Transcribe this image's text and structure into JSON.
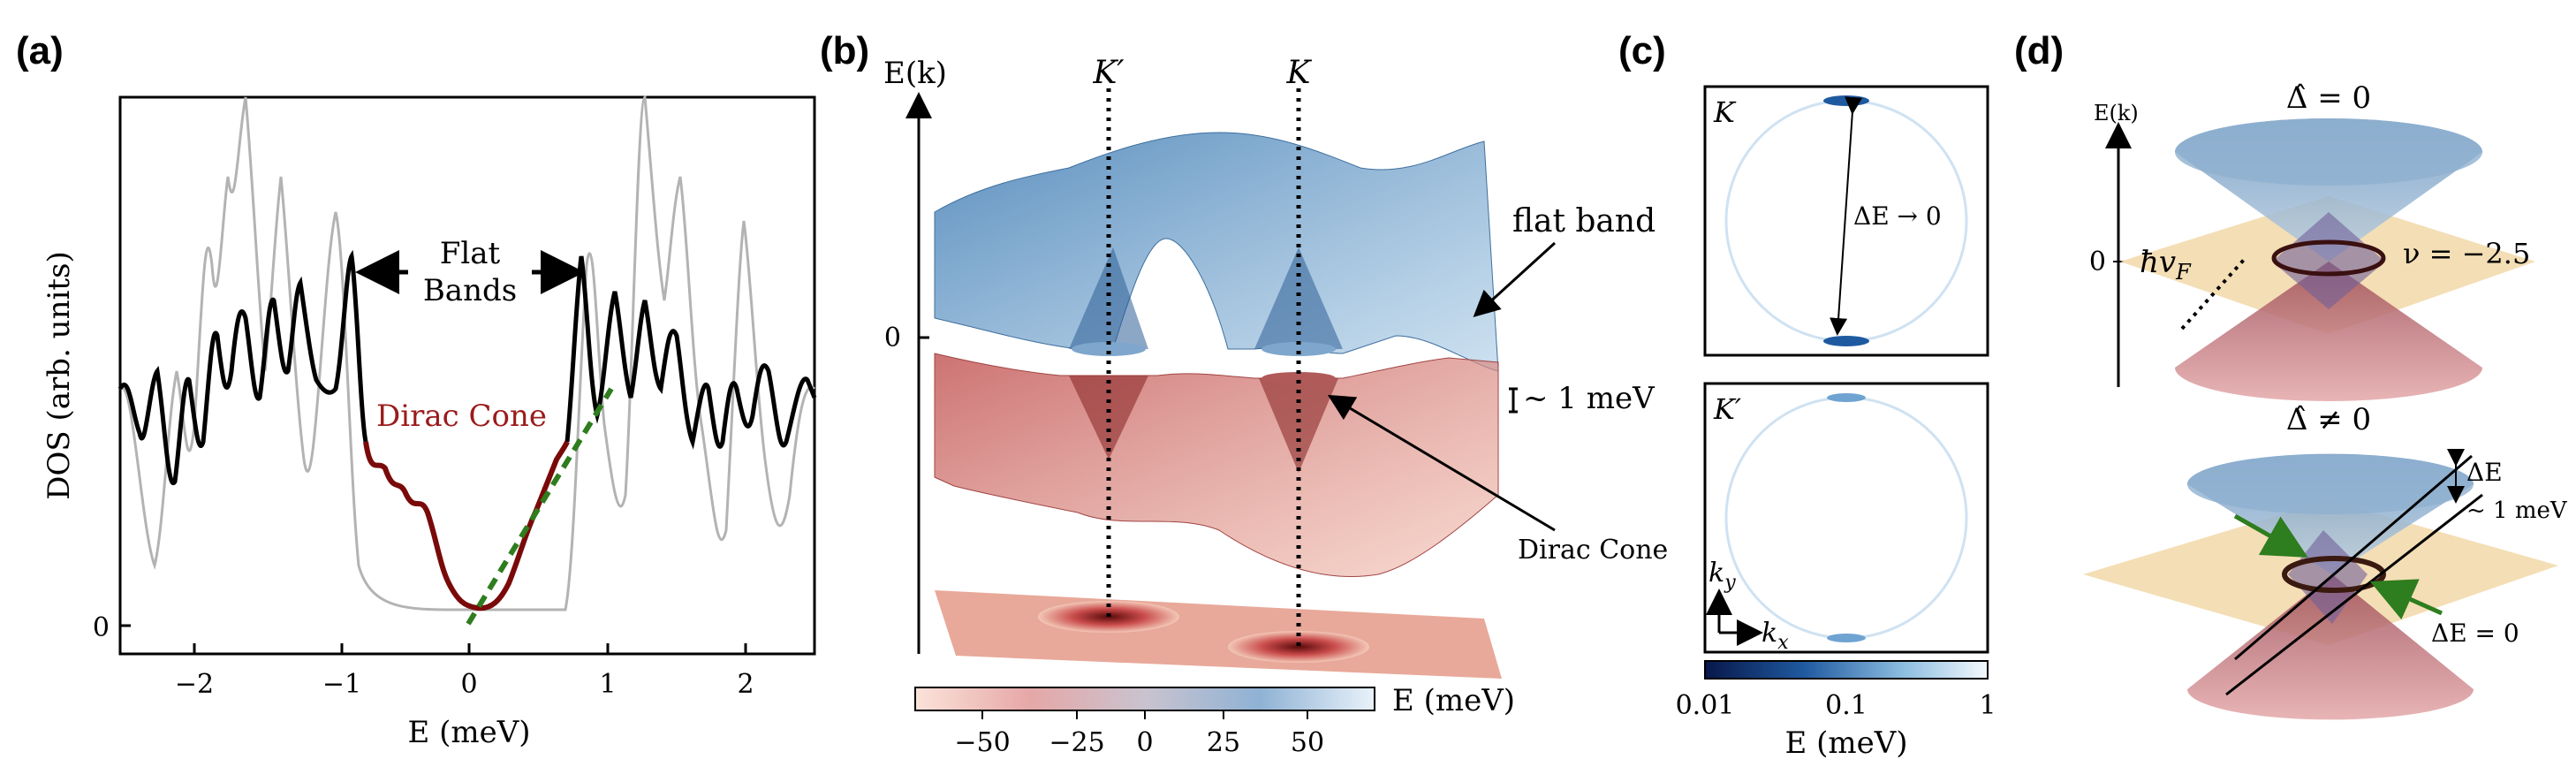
{
  "panels": {
    "a": {
      "label": "(a)",
      "ylabel": "DOS (arb. units)",
      "xlabel": "E (meV)",
      "y_zero_label": "0",
      "xticks": [
        "−2",
        "−1",
        "0",
        "1",
        "2"
      ],
      "annotation_flat": [
        "Flat",
        "Bands"
      ],
      "annotation_dirac": "Dirac Cone"
    },
    "b": {
      "label": "(b)",
      "axis_label": "E(k)",
      "zero_label": "0",
      "kprime": "K′",
      "k": "K",
      "flat_band": "flat band",
      "gap_label": "~ 1 meV",
      "dirac_cone": "Dirac Cone",
      "colorbar_label": "E (meV)",
      "colorbar_ticks": [
        "−50",
        "−25",
        "0",
        "25",
        "50"
      ]
    },
    "c": {
      "label": "(c)",
      "top_label": "K",
      "bottom_label": "K′",
      "delta_label": "ΔE → 0",
      "ky": "k",
      "kx": "k",
      "ky_sub": "y",
      "kx_sub": "x",
      "colorbar_ticks": [
        "0.01",
        "0.1",
        "1"
      ],
      "colorbar_label": "E (meV)"
    },
    "d": {
      "label": "(d)",
      "top_title": "Δ̂ = 0",
      "bottom_title": "Δ̂ ≠ 0",
      "axis_label": "E(k)",
      "zero_label": "0",
      "hvf": "ħv",
      "hvf_sub": "F",
      "nu_label": "ν = −2.5",
      "delta_e": "ΔE",
      "delta_e_value": "~ 1 meV",
      "delta_e_zero": "ΔE = 0"
    }
  },
  "colors": {
    "dos_gray": "#b3b3b3",
    "dos_black": "#000000",
    "dos_red": "#7a0a0a",
    "linear_fit": "#2e7d1e",
    "blue_band": "#5b8fbf",
    "red_band": "#c45454",
    "plane": "#f2d8a8"
  }
}
